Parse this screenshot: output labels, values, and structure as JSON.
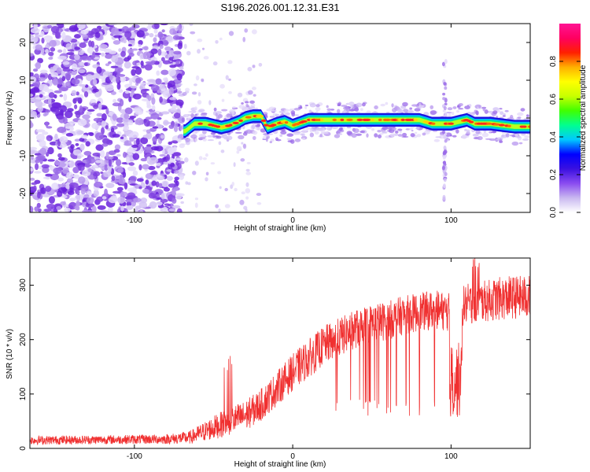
{
  "title": "S196.2026.001.12.31.E31",
  "chart_data": [
    {
      "type": "heatmap",
      "xlabel": "Height of straight line (km)",
      "ylabel": "Frequency (Hz)",
      "xlim": [
        -166,
        150
      ],
      "ylim": [
        -25,
        25
      ],
      "xticks": [
        -100,
        0,
        100
      ],
      "yticks": [
        -20,
        -10,
        0,
        10,
        20
      ],
      "colorbar": {
        "label": "Normalized spectral amplitude",
        "range": [
          0.0,
          1.0
        ],
        "ticks": [
          0.0,
          0.2,
          0.4,
          0.6,
          0.8
        ],
        "tick_labels": [
          "0.0",
          "0.2",
          "0.4",
          "0.6",
          "0.8"
        ],
        "stops": [
          "#ffffff",
          "#c9b8f0",
          "#8a4cf0",
          "#3a10e0",
          "#0000ff",
          "#00c8ff",
          "#00ff90",
          "#40ff00",
          "#c8ff00",
          "#ffff00",
          "#ffb000",
          "#ff2000",
          "#ff0060",
          "#ff1493"
        ]
      },
      "ridge": {
        "x": [
          -68,
          -62,
          -55,
          -45,
          -40,
          -34,
          -30,
          -25,
          -20,
          -16,
          -10,
          -5,
          0,
          10,
          30,
          60,
          80,
          88,
          96,
          100,
          110,
          115,
          125,
          140,
          150
        ],
        "y": [
          -3.5,
          -1.5,
          -1.5,
          -2.5,
          -2,
          -1,
          0,
          0.5,
          0.5,
          -2.5,
          -1.5,
          -1,
          -2,
          -0.5,
          -0.5,
          -0.5,
          -0.5,
          -1.5,
          -1.5,
          -1.5,
          -0.5,
          -1.5,
          -1.5,
          -2.3,
          -2.3
        ]
      }
    },
    {
      "type": "line",
      "xlabel": "Height of straight line (km)",
      "ylabel": "SNR (10 * v/v)",
      "xlim": [
        -166,
        150
      ],
      "ylim": [
        0,
        350
      ],
      "xticks": [
        -100,
        0,
        100
      ],
      "yticks": [
        0,
        100,
        200,
        300
      ],
      "color": "#f03030",
      "envelope": {
        "x": [
          -166,
          -120,
          -80,
          -65,
          -50,
          -40,
          -30,
          -20,
          -10,
          0,
          10,
          20,
          30,
          40,
          50,
          60,
          70,
          80,
          90,
          100,
          110,
          120,
          130,
          140,
          150
        ],
        "base": [
          15,
          16,
          17,
          20,
          38,
          50,
          60,
          80,
          110,
          140,
          165,
          190,
          205,
          220,
          230,
          235,
          245,
          250,
          255,
          250,
          265,
          270,
          275,
          278,
          278
        ],
        "amp": [
          8,
          8,
          9,
          12,
          22,
          26,
          28,
          30,
          32,
          34,
          36,
          36,
          36,
          36,
          36,
          36,
          36,
          36,
          36,
          36,
          38,
          38,
          40,
          40,
          40
        ]
      }
    }
  ]
}
